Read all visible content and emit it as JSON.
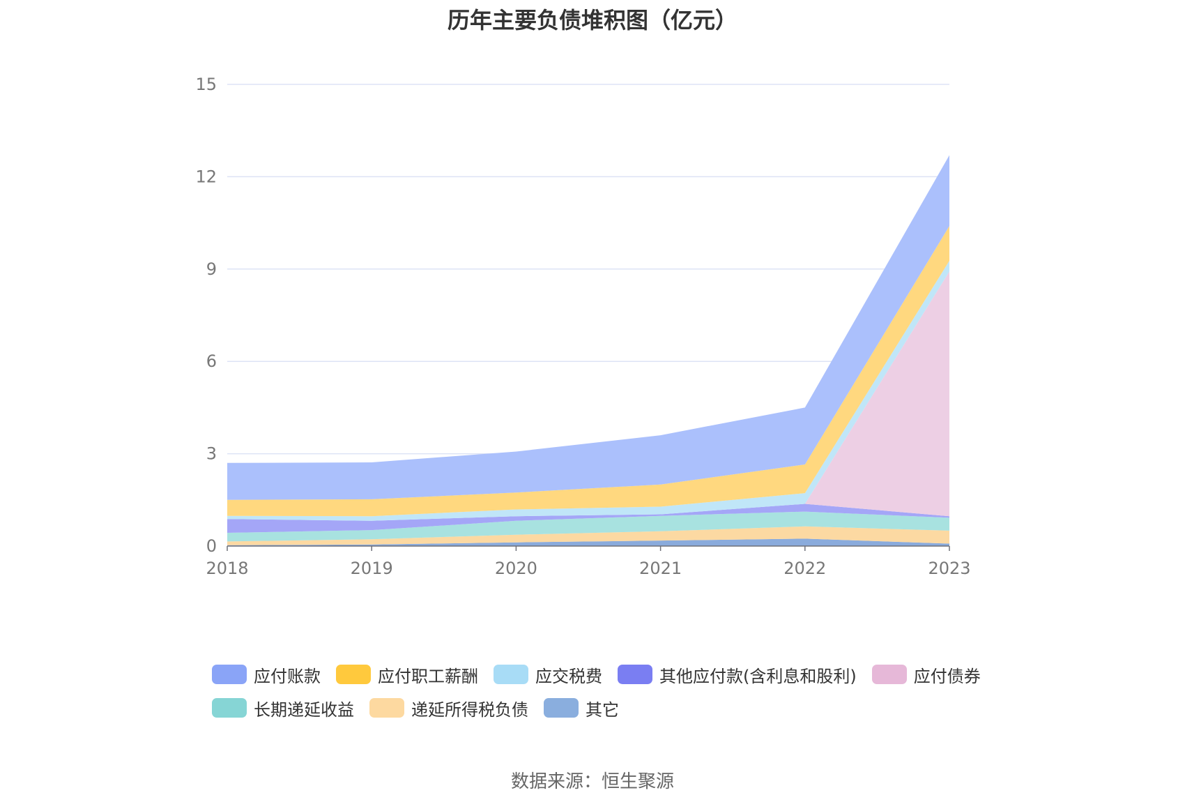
{
  "chart_data": {
    "type": "area",
    "stacked": true,
    "title": "历年主要负债堆积图（亿元）",
    "x": [
      "2018",
      "2019",
      "2020",
      "2021",
      "2022",
      "2023"
    ],
    "ylim": [
      0,
      15
    ],
    "yticks": [
      0,
      3,
      6,
      9,
      12,
      15
    ],
    "grid": true,
    "legend_position": "bottom",
    "series": [
      {
        "name": "其它",
        "color": "#8aabdc",
        "values": [
          0.03,
          0.05,
          0.12,
          0.18,
          0.24,
          0.08
        ]
      },
      {
        "name": "递延所得税负债",
        "color": "#fcd9a2",
        "values": [
          0.12,
          0.17,
          0.25,
          0.3,
          0.4,
          0.42
        ]
      },
      {
        "name": "长期递延收益",
        "color": "#a8e2e0",
        "values": [
          0.28,
          0.3,
          0.45,
          0.5,
          0.48,
          0.42
        ]
      },
      {
        "name": "其他应付款(含利息和股利)",
        "color": "#a4a6f7",
        "values": [
          0.45,
          0.3,
          0.15,
          0.05,
          0.25,
          0.05
        ]
      },
      {
        "name": "应付债券",
        "color": "#edcfe4",
        "values": [
          0,
          0,
          0,
          0,
          0,
          7.95
        ]
      },
      {
        "name": "应交税费",
        "color": "#c0e6f8",
        "values": [
          0.1,
          0.15,
          0.22,
          0.25,
          0.35,
          0.35
        ]
      },
      {
        "name": "应付职工薪酬",
        "color": "#ffd87f",
        "values": [
          0.52,
          0.55,
          0.55,
          0.72,
          0.93,
          1.13
        ]
      },
      {
        "name": "应付账款",
        "color": "#abc0fc",
        "values": [
          1.2,
          1.2,
          1.33,
          1.6,
          1.85,
          2.3
        ]
      }
    ],
    "legend": [
      {
        "name": "应付账款",
        "color": "#8aa4f7"
      },
      {
        "name": "应付职工薪酬",
        "color": "#ffc93d"
      },
      {
        "name": "应交税费",
        "color": "#a8dcf6"
      },
      {
        "name": "其他应付款(含利息和股利)",
        "color": "#7a7ef2"
      },
      {
        "name": "应付债券",
        "color": "#e6b8d8"
      },
      {
        "name": "长期递延收益",
        "color": "#86d5d5"
      },
      {
        "name": "递延所得税负债",
        "color": "#fdd9a0"
      },
      {
        "name": "其它",
        "color": "#8aaede"
      }
    ],
    "source": "数据来源：恒生聚源"
  }
}
